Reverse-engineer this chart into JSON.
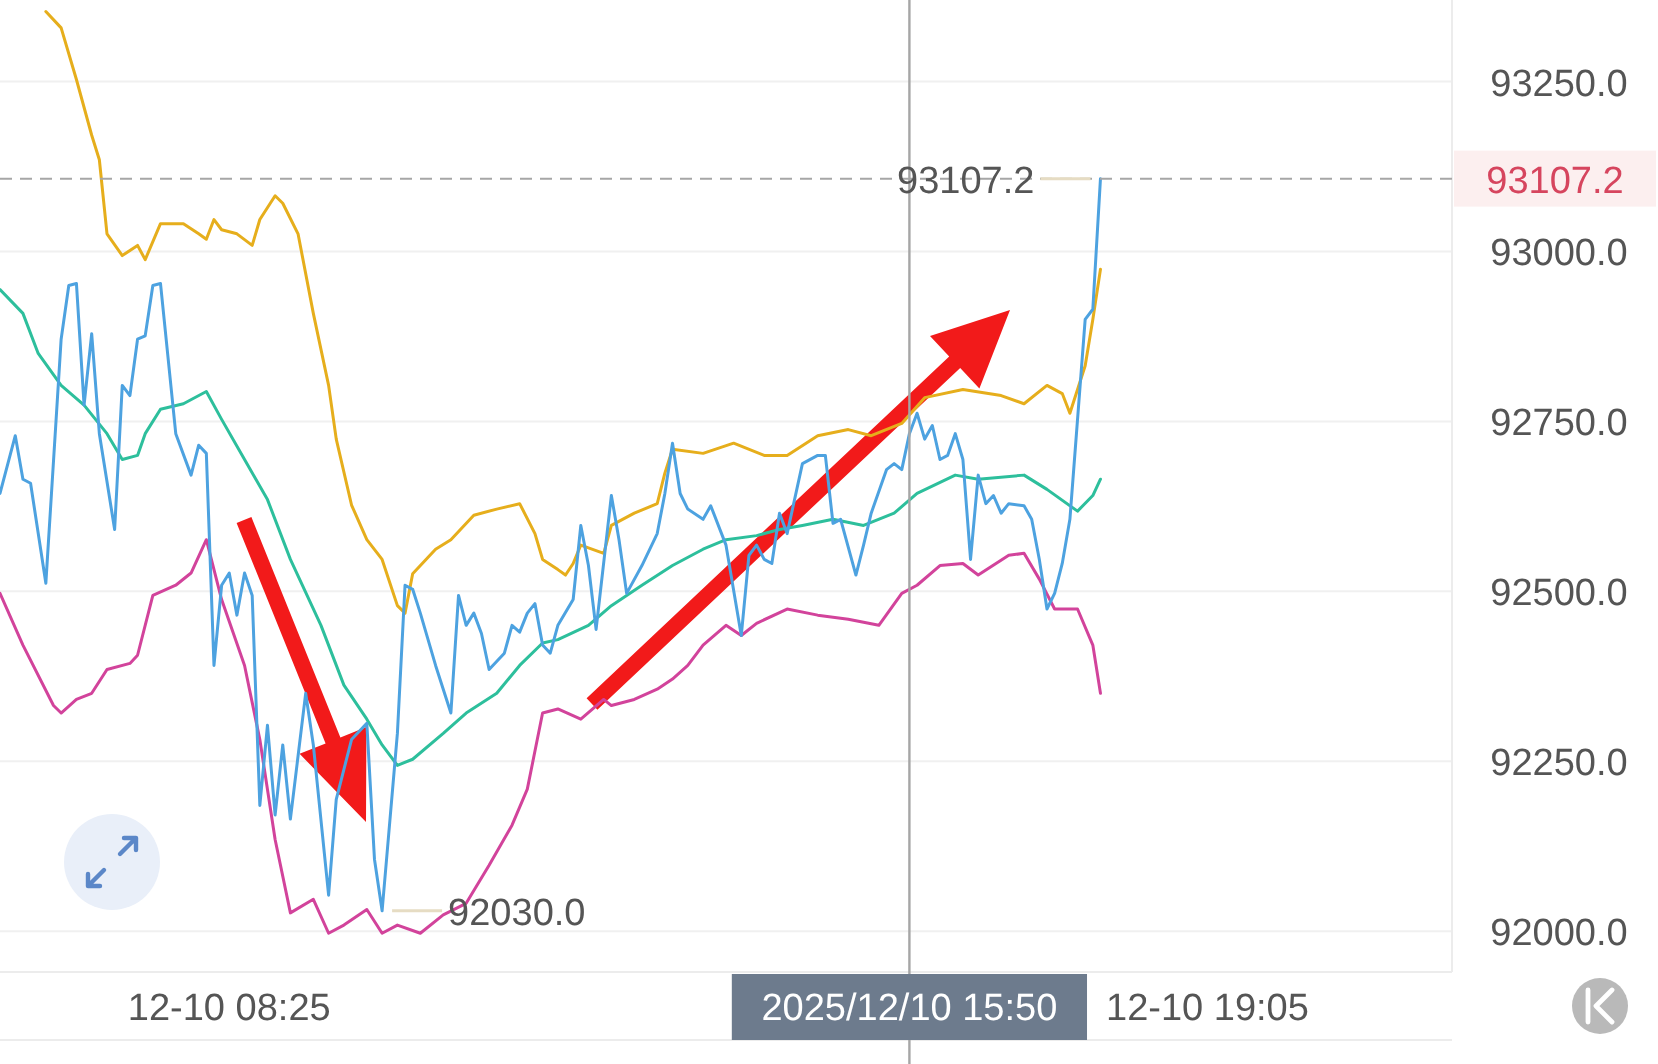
{
  "chart_data": {
    "type": "line",
    "xlim": [
      "2025-12-10T05:55",
      "2025-12-10T21:45"
    ],
    "xticks": [
      {
        "value": "2025-12-10T08:25",
        "label": "12-10 08:25"
      },
      {
        "value": "2025-12-10T19:05",
        "label": "12-10 19:05"
      }
    ],
    "ylim": [
      91940,
      93370
    ],
    "yticks": [
      {
        "value": 92000,
        "label": "92000.0"
      },
      {
        "value": 92250,
        "label": "92250.0"
      },
      {
        "value": 92500,
        "label": "92500.0"
      },
      {
        "value": 92750,
        "label": "92750.0"
      },
      {
        "value": 93000,
        "label": "93000.0"
      },
      {
        "value": 93250,
        "label": "93250.0"
      }
    ],
    "grid": "y",
    "series": [
      {
        "color": "#e6ae1c",
        "x": [
          "2025-12-10T06:25",
          "2025-12-10T06:35",
          "2025-12-10T06:45",
          "2025-12-10T06:55",
          "2025-12-10T07:00",
          "2025-12-10T07:05",
          "2025-12-10T07:15",
          "2025-12-10T07:25",
          "2025-12-10T07:30",
          "2025-12-10T07:40",
          "2025-12-10T07:55",
          "2025-12-10T08:05",
          "2025-12-10T08:10",
          "2025-12-10T08:15",
          "2025-12-10T08:20",
          "2025-12-10T08:30",
          "2025-12-10T08:40",
          "2025-12-10T08:45",
          "2025-12-10T08:55",
          "2025-12-10T09:00",
          "2025-12-10T09:10",
          "2025-12-10T09:20",
          "2025-12-10T09:30",
          "2025-12-10T09:35",
          "2025-12-10T09:45",
          "2025-12-10T09:55",
          "2025-12-10T10:05",
          "2025-12-10T10:15",
          "2025-12-10T10:20",
          "2025-12-10T10:25",
          "2025-12-10T10:40",
          "2025-12-10T10:50",
          "2025-12-10T11:05",
          "2025-12-10T11:20",
          "2025-12-10T11:35",
          "2025-12-10T11:45",
          "2025-12-10T11:50",
          "2025-12-10T12:00",
          "2025-12-10T12:05",
          "2025-12-10T12:10",
          "2025-12-10T12:15",
          "2025-12-10T12:30",
          "2025-12-10T12:35",
          "2025-12-10T12:50",
          "2025-12-10T13:05",
          "2025-12-10T13:10",
          "2025-12-10T13:15",
          "2025-12-10T13:35",
          "2025-12-10T13:55",
          "2025-12-10T14:15",
          "2025-12-10T14:30",
          "2025-12-10T14:50",
          "2025-12-10T15:10",
          "2025-12-10T15:25",
          "2025-12-10T15:45",
          "2025-12-10T16:00",
          "2025-12-10T16:25",
          "2025-12-10T16:50",
          "2025-12-10T17:05",
          "2025-12-10T17:20",
          "2025-12-10T17:30",
          "2025-12-10T17:35",
          "2025-12-10T17:45",
          "2025-12-10T17:50",
          "2025-12-10T17:55"
        ],
        "values": [
          93353,
          93329,
          93253,
          93171,
          93135,
          93026,
          92994,
          93009,
          92988,
          93041,
          93041,
          93026,
          93018,
          93047,
          93032,
          93026,
          93009,
          93047,
          93082,
          93071,
          93026,
          92909,
          92803,
          92724,
          92627,
          92576,
          92547,
          92479,
          92468,
          92526,
          92562,
          92576,
          92612,
          92621,
          92629,
          92585,
          92547,
          92532,
          92524,
          92541,
          92568,
          92556,
          92597,
          92615,
          92629,
          92674,
          92709,
          92703,
          92718,
          92700,
          92700,
          92729,
          92738,
          92729,
          92747,
          92785,
          92797,
          92788,
          92776,
          92803,
          92791,
          92762,
          92832,
          92900,
          92974
        ]
      },
      {
        "color": "#2dbf9c",
        "x": [
          "2025-12-10T05:55",
          "2025-12-10T06:10",
          "2025-12-10T06:20",
          "2025-12-10T06:35",
          "2025-12-10T06:50",
          "2025-12-10T07:05",
          "2025-12-10T07:15",
          "2025-12-10T07:25",
          "2025-12-10T07:30",
          "2025-12-10T07:40",
          "2025-12-10T07:55",
          "2025-12-10T08:10",
          "2025-12-10T08:20",
          "2025-12-10T08:35",
          "2025-12-10T08:50",
          "2025-12-10T09:05",
          "2025-12-10T09:25",
          "2025-12-10T09:40",
          "2025-12-10T09:55",
          "2025-12-10T10:05",
          "2025-12-10T10:15",
          "2025-12-10T10:25",
          "2025-12-10T10:45",
          "2025-12-10T11:00",
          "2025-12-10T11:20",
          "2025-12-10T11:35",
          "2025-12-10T11:50",
          "2025-12-10T12:00",
          "2025-12-10T12:20",
          "2025-12-10T12:35",
          "2025-12-10T12:55",
          "2025-12-10T13:15",
          "2025-12-10T13:35",
          "2025-12-10T13:50",
          "2025-12-10T14:10",
          "2025-12-10T14:25",
          "2025-12-10T14:40",
          "2025-12-10T15:00",
          "2025-12-10T15:20",
          "2025-12-10T15:40",
          "2025-12-10T15:55",
          "2025-12-10T16:20",
          "2025-12-10T16:35",
          "2025-12-10T17:05",
          "2025-12-10T17:20",
          "2025-12-10T17:40",
          "2025-12-10T17:50",
          "2025-12-10T17:55"
        ],
        "values": [
          92944,
          92909,
          92850,
          92803,
          92774,
          92732,
          92694,
          92700,
          92732,
          92768,
          92776,
          92794,
          92753,
          92694,
          92635,
          92547,
          92450,
          92362,
          92312,
          92274,
          92244,
          92253,
          92291,
          92321,
          92350,
          92391,
          92424,
          92429,
          92450,
          92479,
          92509,
          92538,
          92562,
          92576,
          92582,
          92591,
          92597,
          92606,
          92597,
          92615,
          92644,
          92671,
          92665,
          92671,
          92650,
          92618,
          92641,
          92665
        ]
      },
      {
        "color": "#d2439b",
        "x": [
          "2025-12-10T05:55",
          "2025-12-10T06:10",
          "2025-12-10T06:30",
          "2025-12-10T06:35",
          "2025-12-10T06:45",
          "2025-12-10T06:55",
          "2025-12-10T07:05",
          "2025-12-10T07:20",
          "2025-12-10T07:25",
          "2025-12-10T07:35",
          "2025-12-10T07:50",
          "2025-12-10T08:00",
          "2025-12-10T08:10",
          "2025-12-10T08:20",
          "2025-12-10T08:35",
          "2025-12-10T08:45",
          "2025-12-10T08:55",
          "2025-12-10T09:05",
          "2025-12-10T09:20",
          "2025-12-10T09:30",
          "2025-12-10T09:40",
          "2025-12-10T09:55",
          "2025-12-10T10:05",
          "2025-12-10T10:15",
          "2025-12-10T10:30",
          "2025-12-10T10:45",
          "2025-12-10T11:00",
          "2025-12-10T11:15",
          "2025-12-10T11:30",
          "2025-12-10T11:40",
          "2025-12-10T11:50",
          "2025-12-10T12:00",
          "2025-12-10T12:15",
          "2025-12-10T12:30",
          "2025-12-10T12:35",
          "2025-12-10T12:50",
          "2025-12-10T13:05",
          "2025-12-10T13:15",
          "2025-12-10T13:25",
          "2025-12-10T13:35",
          "2025-12-10T13:50",
          "2025-12-10T14:00",
          "2025-12-10T14:10",
          "2025-12-10T14:30",
          "2025-12-10T14:50",
          "2025-12-10T15:10",
          "2025-12-10T15:30",
          "2025-12-10T15:45",
          "2025-12-10T15:55",
          "2025-12-10T16:10",
          "2025-12-10T16:25",
          "2025-12-10T16:35",
          "2025-12-10T16:55",
          "2025-12-10T17:05",
          "2025-12-10T17:15",
          "2025-12-10T17:25",
          "2025-12-10T17:40",
          "2025-12-10T17:50",
          "2025-12-10T17:55"
        ],
        "values": [
          92497,
          92421,
          92332,
          92321,
          92341,
          92350,
          92385,
          92394,
          92406,
          92494,
          92509,
          92527,
          92576,
          92488,
          92391,
          92282,
          92135,
          92027,
          92047,
          91997,
          92009,
          92032,
          91997,
          92009,
          91997,
          92024,
          92041,
          92097,
          92156,
          92209,
          92321,
          92327,
          92312,
          92341,
          92332,
          92341,
          92356,
          92371,
          92391,
          92421,
          92450,
          92435,
          92453,
          92474,
          92465,
          92459,
          92450,
          92497,
          92509,
          92538,
          92541,
          92524,
          92553,
          92556,
          92518,
          92474,
          92474,
          92421,
          92350
        ]
      },
      {
        "color": "#4da2e0",
        "x": [
          "2025-12-10T05:55",
          "2025-12-10T06:05",
          "2025-12-10T06:10",
          "2025-12-10T06:15",
          "2025-12-10T06:25",
          "2025-12-10T06:35",
          "2025-12-10T06:40",
          "2025-12-10T06:45",
          "2025-12-10T06:50",
          "2025-12-10T06:55",
          "2025-12-10T07:00",
          "2025-12-10T07:10",
          "2025-12-10T07:15",
          "2025-12-10T07:20",
          "2025-12-10T07:25",
          "2025-12-10T07:30",
          "2025-12-10T07:35",
          "2025-12-10T07:40",
          "2025-12-10T07:50",
          "2025-12-10T08:00",
          "2025-12-10T08:05",
          "2025-12-10T08:10",
          "2025-12-10T08:15",
          "2025-12-10T08:20",
          "2025-12-10T08:25",
          "2025-12-10T08:30",
          "2025-12-10T08:35",
          "2025-12-10T08:40",
          "2025-12-10T08:45",
          "2025-12-10T08:50",
          "2025-12-10T08:55",
          "2025-12-10T09:00",
          "2025-12-10T09:05",
          "2025-12-10T09:15",
          "2025-12-10T09:20",
          "2025-12-10T09:30",
          "2025-12-10T09:35",
          "2025-12-10T09:45",
          "2025-12-10T09:55",
          "2025-12-10T10:00",
          "2025-12-10T10:05",
          "2025-12-10T10:15",
          "2025-12-10T10:20",
          "2025-12-10T10:25",
          "2025-12-10T10:30",
          "2025-12-10T10:40",
          "2025-12-10T10:50",
          "2025-12-10T10:55",
          "2025-12-10T11:00",
          "2025-12-10T11:05",
          "2025-12-10T11:10",
          "2025-12-10T11:15",
          "2025-12-10T11:25",
          "2025-12-10T11:30",
          "2025-12-10T11:35",
          "2025-12-10T11:40",
          "2025-12-10T11:45",
          "2025-12-10T11:50",
          "2025-12-10T11:55",
          "2025-12-10T12:00",
          "2025-12-10T12:10",
          "2025-12-10T12:15",
          "2025-12-10T12:20",
          "2025-12-10T12:25",
          "2025-12-10T12:35",
          "2025-12-10T12:40",
          "2025-12-10T12:45",
          "2025-12-10T12:55",
          "2025-12-10T13:05",
          "2025-12-10T13:10",
          "2025-12-10T13:15",
          "2025-12-10T13:20",
          "2025-12-10T13:25",
          "2025-12-10T13:35",
          "2025-12-10T13:40",
          "2025-12-10T13:50",
          "2025-12-10T14:00",
          "2025-12-10T14:05",
          "2025-12-10T14:10",
          "2025-12-10T14:15",
          "2025-12-10T14:20",
          "2025-12-10T14:25",
          "2025-12-10T14:30",
          "2025-12-10T14:40",
          "2025-12-10T14:50",
          "2025-12-10T14:55",
          "2025-12-10T15:00",
          "2025-12-10T15:05",
          "2025-12-10T15:15",
          "2025-12-10T15:20",
          "2025-12-10T15:25",
          "2025-12-10T15:35",
          "2025-12-10T15:40",
          "2025-12-10T15:45",
          "2025-12-10T15:50",
          "2025-12-10T15:55",
          "2025-12-10T16:00",
          "2025-12-10T16:05",
          "2025-12-10T16:10",
          "2025-12-10T16:15",
          "2025-12-10T16:20",
          "2025-12-10T16:25",
          "2025-12-10T16:30",
          "2025-12-10T16:35",
          "2025-12-10T16:40",
          "2025-12-10T16:45",
          "2025-12-10T16:50",
          "2025-12-10T16:55",
          "2025-12-10T17:05",
          "2025-12-10T17:10",
          "2025-12-10T17:15",
          "2025-12-10T17:20",
          "2025-12-10T17:25",
          "2025-12-10T17:30",
          "2025-12-10T17:35",
          "2025-12-10T17:40",
          "2025-12-10T17:45",
          "2025-12-10T17:50",
          "2025-12-10T17:55"
        ],
        "values": [
          92644,
          92729,
          92665,
          92659,
          92512,
          92871,
          92950,
          92953,
          92774,
          92879,
          92732,
          92591,
          92803,
          92788,
          92871,
          92876,
          92950,
          92953,
          92732,
          92671,
          92715,
          92703,
          92391,
          92509,
          92527,
          92465,
          92527,
          92494,
          92185,
          92303,
          92171,
          92274,
          92165,
          92350,
          92274,
          92053,
          92194,
          92282,
          92306,
          92106,
          92030,
          92291,
          92509,
          92503,
          92468,
          92391,
          92321,
          92494,
          92450,
          92468,
          92438,
          92385,
          92409,
          92450,
          92440,
          92468,
          92482,
          92421,
          92409,
          92450,
          92488,
          92597,
          92538,
          92444,
          92641,
          92576,
          92497,
          92538,
          92585,
          92644,
          92718,
          92644,
          92621,
          92606,
          92626,
          92568,
          92435,
          92553,
          92568,
          92547,
          92541,
          92615,
          92585,
          92688,
          92700,
          92700,
          92600,
          92606,
          92524,
          92568,
          92615,
          92679,
          92688,
          92679,
          92732,
          92762,
          92724,
          92744,
          92694,
          92700,
          92732,
          92694,
          92547,
          92671,
          92629,
          92641,
          92615,
          92629,
          92626,
          92606,
          92547,
          92474,
          92497,
          92541,
          92606,
          92753,
          92900,
          92915,
          93107.2
        ]
      }
    ],
    "ref_lines": [
      {
        "axis": "y",
        "value": 93107.2,
        "label": "93107.2",
        "color": "#a6a6a6",
        "line_style": "dashed"
      },
      {
        "axis": "x",
        "value": "2025-12-10T15:50",
        "label": "2025/12/10 15:50",
        "color": "#a6a6a6"
      }
    ],
    "annotations": [
      {
        "text": "93107.2",
        "x": "2025-12-10T17:55",
        "y": 93107.2
      },
      {
        "text": "92030.0",
        "x": "2025-12-10T10:05",
        "y": 92030
      }
    ]
  }
}
